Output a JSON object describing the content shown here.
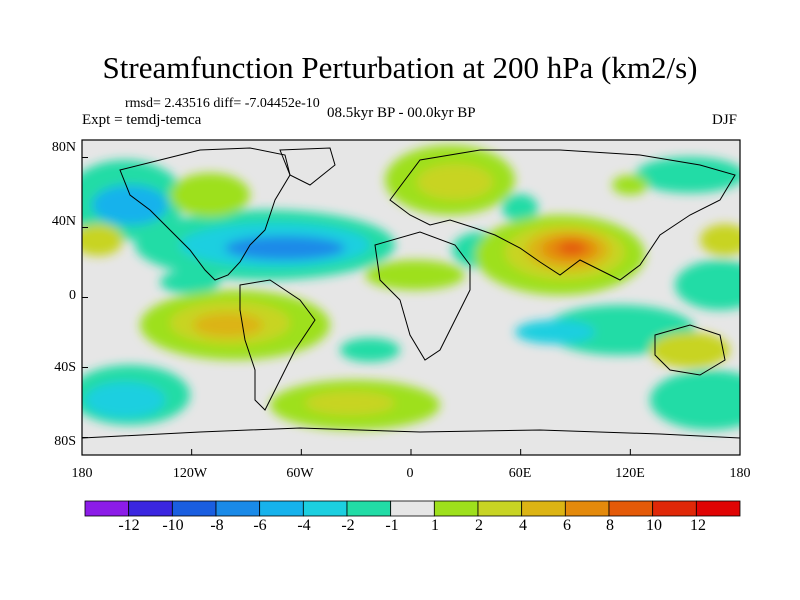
{
  "plot": {
    "title": "Streamfunction Perturbation at 200 hPa (km2/s)",
    "stats": "rmsd= 2.43516 diff= -7.04452e-10",
    "expt": "Expt = temdj-temca",
    "period": "08.5kyr BP - 00.0kyr BP",
    "season": "DJF"
  },
  "axes": {
    "y_labels": [
      "80N",
      "40N",
      "0",
      "40S",
      "80S"
    ],
    "y_values": [
      80,
      40,
      0,
      -40,
      -80
    ],
    "x_labels": [
      "180",
      "120W",
      "60W",
      "0",
      "60E",
      "120E",
      "180"
    ],
    "x_values": [
      -180,
      -120,
      -60,
      0,
      60,
      120,
      180
    ],
    "lon_range": [
      -180,
      180
    ],
    "lat_range": [
      -90,
      90
    ]
  },
  "colorbar": {
    "labels": [
      "-12",
      "-10",
      "-8",
      "-6",
      "-4",
      "-2",
      "-1",
      "1",
      "2",
      "4",
      "6",
      "8",
      "10",
      "12"
    ],
    "colors": [
      "#8c1ce8",
      "#3b26e0",
      "#1a5ee0",
      "#1a8ae8",
      "#16b2ec",
      "#1ccfe0",
      "#22dca6",
      "#e6e6e6",
      "#9ee01c",
      "#c8d424",
      "#dcb414",
      "#e48a0c",
      "#e45a08",
      "#e02808",
      "#e00404"
    ]
  },
  "colors": {
    "background": "#e6e6e6",
    "coast": "#000000"
  }
}
